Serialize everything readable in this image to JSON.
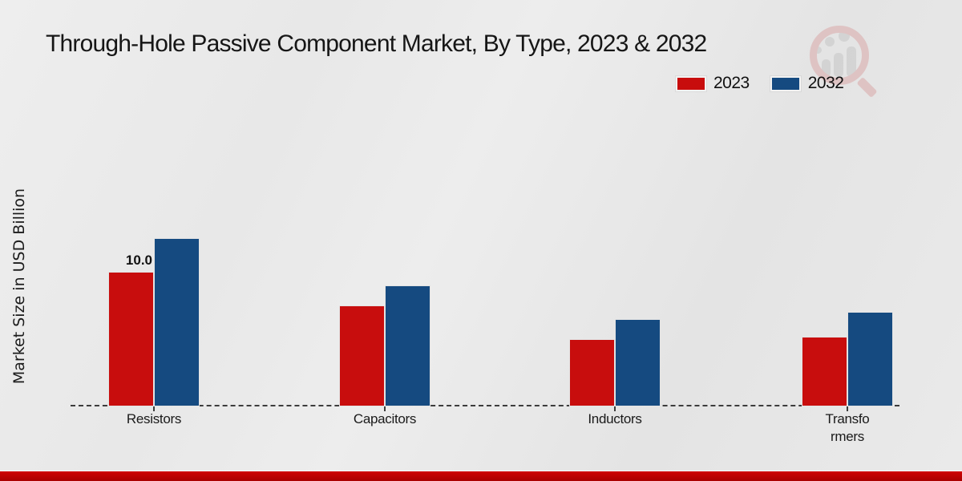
{
  "title": "Through-Hole Passive Component Market, By Type, 2023 & 2032",
  "y_axis_label": "Market Size in USD Billion",
  "accent_colors": {
    "series_2023": "#c80d0d",
    "series_2032": "#154a80",
    "bottom_band": "#bb0202"
  },
  "chart_data": {
    "type": "bar",
    "title": "Through-Hole Passive Component Market, By Type, 2023 & 2032",
    "categories": [
      "Resistors",
      "Capacitors",
      "Inductors",
      "Transformers"
    ],
    "category_label_lines": [
      [
        "Resistors"
      ],
      [
        "Capacitors"
      ],
      [
        "Inductors"
      ],
      [
        "Transfo",
        "rmers"
      ]
    ],
    "series": [
      {
        "name": "2023",
        "color": "#c80d0d",
        "values": [
          10.0,
          7.5,
          5.0,
          5.2
        ]
      },
      {
        "name": "2032",
        "color": "#154a80",
        "values": [
          12.5,
          9.0,
          6.5,
          7.0
        ]
      }
    ],
    "bar_label": {
      "series": "2023",
      "category": "Resistors",
      "text": "10.0"
    },
    "xlabel": "",
    "ylabel": "Market Size in USD Billion",
    "ylim": [
      0,
      13
    ],
    "grid": false,
    "legend_position": "top-right",
    "baseline_style": "dashed"
  }
}
